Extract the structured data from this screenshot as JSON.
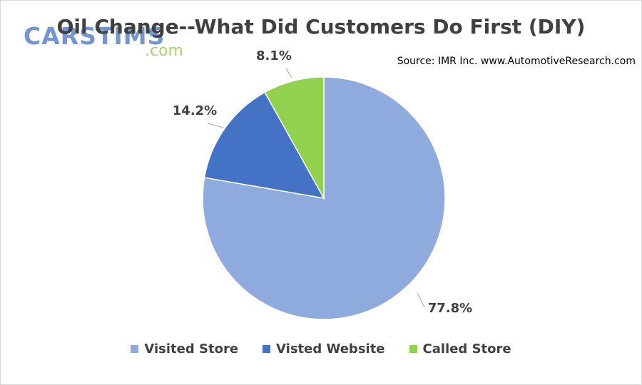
{
  "logo": {
    "main": "CARSTIMS",
    "sub": ".com"
  },
  "chart_data": {
    "type": "pie",
    "title": "Oil Change--What Did Customers Do First (DIY)",
    "source": "Source: IMR Inc. www.AutomotiveResearch.com",
    "legend_position": "bottom",
    "slices": [
      {
        "label": "Visited Store",
        "value": 77.8,
        "display": "77.8%",
        "color": "#8faadc"
      },
      {
        "label": "Visted Website",
        "value": 14.2,
        "display": "14.2%",
        "color": "#4472c4"
      },
      {
        "label": "Called Store",
        "value": 8.1,
        "display": "8.1%",
        "color": "#92d050"
      }
    ]
  }
}
